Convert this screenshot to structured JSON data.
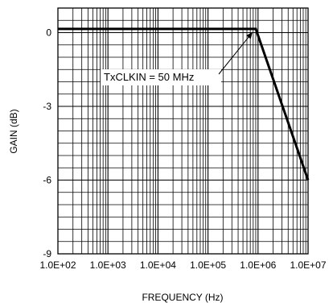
{
  "chart_data": {
    "type": "line",
    "xscale": "log",
    "xlim": [
      100,
      10000000
    ],
    "ylim": [
      -9,
      1
    ],
    "grid": true,
    "title": "",
    "xlabel": "FREQUENCY (Hz)",
    "ylabel": "GAIN (dB)",
    "x_tick_labels": [
      "1.0E+02",
      "1.0E+03",
      "1.0E+04",
      "1.0E+05",
      "1.0E+06",
      "1.0E+07"
    ],
    "y_tick_labels": [
      "0",
      "-3",
      "-6",
      "-9"
    ],
    "series": [
      {
        "name": "",
        "color": "#000000",
        "points": [
          [
            100,
            0.15
          ],
          [
            900000,
            0.15
          ],
          [
            10000000,
            -6.0
          ]
        ]
      }
    ],
    "annotations": [
      {
        "text": "TxCLKIN =  50 MHz",
        "arrow_to": [
          900000,
          0.15
        ]
      }
    ]
  }
}
